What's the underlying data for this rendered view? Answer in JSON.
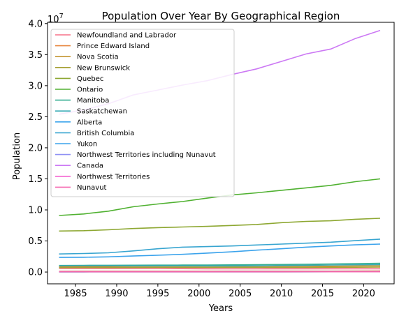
{
  "chart_data": {
    "type": "line",
    "title": "Population Over Year By Geographical Region",
    "xlabel": "Years",
    "ylabel": "Population",
    "offset_text": "1e7",
    "xlim": [
      1981.6,
      2023.7
    ],
    "ylim": [
      -1900000.0,
      40200000.0
    ],
    "xticks": [
      1985,
      1990,
      1995,
      2000,
      2005,
      2010,
      2015,
      2020
    ],
    "yticks": [
      0,
      5000000.0,
      10000000.0,
      15000000.0,
      20000000.0,
      25000000.0,
      30000000.0,
      35000000.0,
      40000000.0
    ],
    "ytick_labels": [
      "0.0",
      "0.5",
      "1.0",
      "1.5",
      "2.0",
      "2.5",
      "3.0",
      "3.5",
      "4.0"
    ],
    "legend_position": "top-left",
    "grid": false,
    "x": [
      1983,
      1986,
      1989,
      1992,
      1995,
      1998,
      2001,
      2004,
      2007,
      2010,
      2013,
      2016,
      2019,
      2022
    ],
    "series": [
      {
        "name": "Newfoundland and Labrador",
        "color": "#f77189",
        "values": [
          580000,
          575000,
          570000,
          575000,
          570000,
          545000,
          522000,
          518000,
          510000,
          522000,
          527000,
          528000,
          522000,
          525000
        ]
      },
      {
        "name": "Prince Edward Island",
        "color": "#e7853c",
        "values": [
          125000,
          127000,
          129000,
          131000,
          135000,
          137000,
          136000,
          138000,
          138000,
          142000,
          145000,
          148000,
          157000,
          167000
        ]
      },
      {
        "name": "Nova Scotia",
        "color": "#c39532",
        "values": [
          860000,
          870000,
          880000,
          905000,
          910000,
          910000,
          910000,
          915000,
          915000,
          930000,
          940000,
          945000,
          975000,
          1020000
        ]
      },
      {
        "name": "New Brunswick",
        "color": "#a59f31",
        "values": [
          710000,
          715000,
          720000,
          730000,
          740000,
          740000,
          740000,
          745000,
          745000,
          750000,
          755000,
          757000,
          775000,
          810000
        ]
      },
      {
        "name": "Quebec",
        "color": "#8da731",
        "values": [
          6600000,
          6650000,
          6800000,
          7000000,
          7150000,
          7250000,
          7350000,
          7500000,
          7650000,
          7950000,
          8150000,
          8250000,
          8500000,
          8650000
        ]
      },
      {
        "name": "Ontario",
        "color": "#50b131",
        "values": [
          9100000,
          9350000,
          9800000,
          10500000,
          10950000,
          11350000,
          11900000,
          12400000,
          12750000,
          13150000,
          13550000,
          13950000,
          14550000,
          15000000
        ]
      },
      {
        "name": "Manitoba",
        "color": "#34ae91",
        "values": [
          1050000,
          1070000,
          1090000,
          1100000,
          1110000,
          1115000,
          1125000,
          1150000,
          1180000,
          1210000,
          1250000,
          1300000,
          1360000,
          1400000
        ]
      },
      {
        "name": "Saskatchewan",
        "color": "#37abb5",
        "values": [
          1000000,
          1020000,
          1010000,
          1000000,
          1000000,
          1000000,
          990000,
          990000,
          1000000,
          1050000,
          1090000,
          1130000,
          1170000,
          1200000
        ]
      },
      {
        "name": "Alberta",
        "color": "#3ba3ec",
        "values": [
          2350000,
          2380000,
          2450000,
          2580000,
          2700000,
          2850000,
          3050000,
          3250000,
          3520000,
          3750000,
          4000000,
          4200000,
          4380000,
          4500000
        ]
      },
      {
        "name": "British Columbia",
        "color": "#38a5d0",
        "values": [
          2900000,
          2980000,
          3100000,
          3400000,
          3750000,
          4000000,
          4100000,
          4200000,
          4350000,
          4500000,
          4650000,
          4800000,
          5050000,
          5300000
        ]
      },
      {
        "name": "Yukon",
        "color": "#3ba3ec",
        "values": [
          23000,
          24000,
          26000,
          28000,
          30000,
          31000,
          30000,
          31000,
          32000,
          34000,
          36000,
          38000,
          41000,
          43000
        ]
      },
      {
        "name": "Northwest Territories including Nunavut",
        "color": "#8f91f4",
        "values": [
          50000,
          53000,
          56000,
          59000,
          62000,
          65000,
          68000,
          71000,
          74000,
          77000,
          80000,
          83000,
          86000,
          89000
        ]
      },
      {
        "name": "Canada",
        "color": "#cc79f4",
        "values": [
          25400000,
          26100000,
          27100000,
          28500000,
          29300000,
          30100000,
          30800000,
          31800000,
          32700000,
          33900000,
          35100000,
          35900000,
          37600000,
          38900000
        ]
      },
      {
        "name": "Northwest Territories",
        "color": "#f45fcf",
        "values": [
          42000,
          43000,
          43000,
          42000,
          42000,
          41000,
          41000,
          42000,
          43000,
          43000,
          44000,
          44500,
          44800,
          45500
        ]
      },
      {
        "name": "Nunavut",
        "color": "#f668b0",
        "values": [
          28000,
          29000,
          30000,
          31000,
          32000,
          32000,
          33000,
          34000,
          35000,
          36000,
          37000,
          38000,
          39000,
          40000
        ]
      }
    ]
  }
}
